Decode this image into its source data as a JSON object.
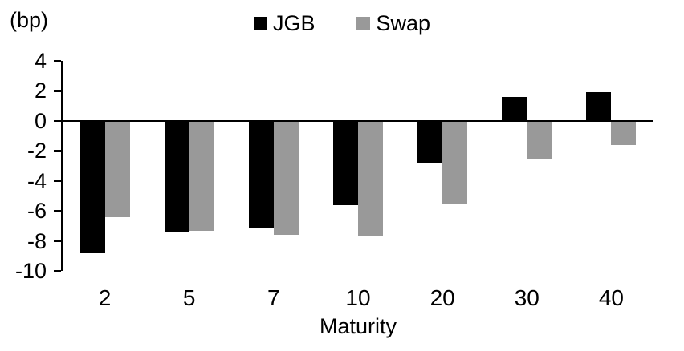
{
  "chart_data": {
    "type": "bar",
    "unit_label": "(bp)",
    "xlabel": "Maturity",
    "categories": [
      "2",
      "5",
      "7",
      "10",
      "20",
      "30",
      "40"
    ],
    "series": [
      {
        "name": "JGB",
        "color": "#000000",
        "values": [
          -8.8,
          -7.4,
          -7.1,
          -5.6,
          -2.8,
          1.6,
          1.9
        ]
      },
      {
        "name": "Swap",
        "color": "#999999",
        "values": [
          -6.4,
          -7.3,
          -7.6,
          -7.7,
          -5.5,
          -2.5,
          -1.6
        ]
      }
    ],
    "y_ticks": [
      4,
      2,
      0,
      -2,
      -4,
      -6,
      -8,
      -10
    ],
    "ylim": [
      -10,
      4
    ],
    "grid": false,
    "legend_position": "top-center",
    "axis_color": "#000000",
    "background_color": "#ffffff"
  }
}
